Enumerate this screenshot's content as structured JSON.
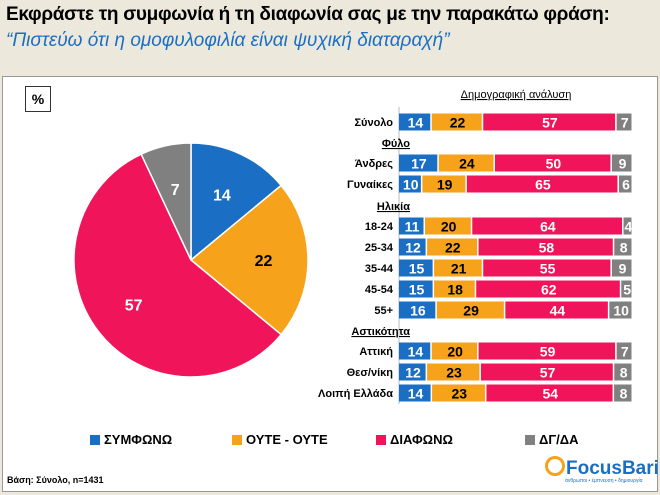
{
  "header": {
    "title": "Εκφράστε τη συμφωνία ή τη διαφωνία σας με την παρακάτω φράση:",
    "subtitle": "“Πιστεύω ότι η ομοφυλοφιλία είναι ψυχική διαταραχή”"
  },
  "unit_label": "%",
  "colors": {
    "agree": "#1a6fc4",
    "neutral": "#f7a21b",
    "disagree": "#f0145a",
    "dk": "#808080"
  },
  "footer": {
    "base": "Βάση: Σύνολο, n=1431",
    "logo": "FocusBari",
    "logo_tagline": "άνθρωποι • έμπνευση • δημιουργία"
  },
  "chart_data": [
    {
      "type": "pie",
      "categories": [
        "ΣΥΜΦΩΝΩ",
        "ΟΥΤΕ - ΟΥΤΕ",
        "ΔΙΑΦΩΝΩ",
        "ΔΓ/ΔΑ"
      ],
      "values": [
        14,
        22,
        57,
        7
      ]
    },
    {
      "type": "bar",
      "stacked": true,
      "orientation": "horizontal",
      "title": "Δημογραφική ανάλυση",
      "groups": [
        {
          "label": "",
          "rows": [
            {
              "label": "Σύνολο",
              "values": [
                14,
                22,
                57,
                7
              ]
            }
          ]
        },
        {
          "label": "Φύλο",
          "rows": [
            {
              "label": "Άνδρες",
              "values": [
                17,
                24,
                50,
                9
              ]
            },
            {
              "label": "Γυναίκες",
              "values": [
                10,
                19,
                65,
                6
              ]
            }
          ]
        },
        {
          "label": "Ηλικία",
          "rows": [
            {
              "label": "18-24",
              "values": [
                11,
                20,
                64,
                4
              ]
            },
            {
              "label": "25-34",
              "values": [
                12,
                22,
                58,
                8
              ]
            },
            {
              "label": "35-44",
              "values": [
                15,
                21,
                55,
                9
              ]
            },
            {
              "label": "45-54",
              "values": [
                15,
                18,
                62,
                5
              ]
            },
            {
              "label": "55+",
              "values": [
                16,
                29,
                44,
                10
              ]
            }
          ]
        },
        {
          "label": "Αστικότητα",
          "rows": [
            {
              "label": "Αττική",
              "values": [
                14,
                20,
                59,
                7
              ]
            },
            {
              "label": "Θεσ/νίκη",
              "values": [
                12,
                23,
                57,
                8
              ]
            },
            {
              "label": "Λοιπή Ελλάδα",
              "values": [
                14,
                23,
                54,
                8
              ]
            }
          ]
        }
      ],
      "series": [
        {
          "name": "ΣΥΜΦΩΝΩ"
        },
        {
          "name": "ΟΥΤΕ - ΟΥΤΕ"
        },
        {
          "name": "ΔΙΑΦΩΝΩ"
        },
        {
          "name": "ΔΓ/ΔΑ"
        }
      ],
      "legend": "bottom"
    }
  ]
}
